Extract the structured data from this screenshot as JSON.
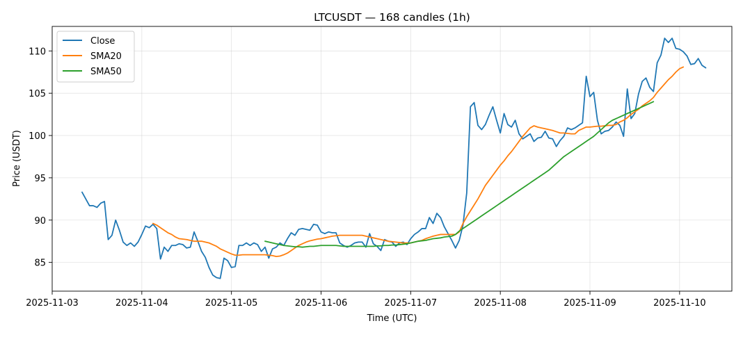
{
  "chart_data": {
    "type": "line",
    "title": "LTCUSDT — 168 candles (1h)",
    "xlabel": "Time (UTC)",
    "ylabel": "Price (USDT)",
    "x_ticks": [
      "2025-11-03",
      "2025-11-04",
      "2025-11-05",
      "2025-11-06",
      "2025-11-07",
      "2025-11-08",
      "2025-11-09",
      "2025-11-10"
    ],
    "y_ticks": [
      "85",
      "90",
      "95",
      "100",
      "105",
      "110"
    ],
    "ylim": [
      81.6,
      112.9
    ],
    "xlim_days": [
      "2025-11-03T00:00",
      "2025-11-10T14:00"
    ],
    "grid": true,
    "legend": "upper-left",
    "x_start": "2025-11-03T08:00",
    "x_step": "1h",
    "series": [
      {
        "name": "Close",
        "color": "#1f77b4",
        "values": [
          93.3,
          92.5,
          91.7,
          91.7,
          91.5,
          92.0,
          92.2,
          87.7,
          88.2,
          90.0,
          88.8,
          87.4,
          87.0,
          87.3,
          86.9,
          87.4,
          88.3,
          89.3,
          89.1,
          89.5,
          89.0,
          85.4,
          86.8,
          86.3,
          87.0,
          87.0,
          87.2,
          87.1,
          86.7,
          86.8,
          88.6,
          87.5,
          86.3,
          85.6,
          84.4,
          83.5,
          83.2,
          83.1,
          85.5,
          85.2,
          84.4,
          84.5,
          87.0,
          87.0,
          87.3,
          87.0,
          87.3,
          87.1,
          86.3,
          86.8,
          85.5,
          86.6,
          86.8,
          87.3,
          87.0,
          87.8,
          88.5,
          88.2,
          88.9,
          89.0,
          88.9,
          88.8,
          89.5,
          89.4,
          88.6,
          88.4,
          88.6,
          88.5,
          88.5,
          87.3,
          87.0,
          86.8,
          87.0,
          87.3,
          87.4,
          87.4,
          86.8,
          88.4,
          87.2,
          86.9,
          86.4,
          87.7,
          87.5,
          87.4,
          86.9,
          87.3,
          87.4,
          87.1,
          87.8,
          88.3,
          88.6,
          89.0,
          89.0,
          90.3,
          89.6,
          90.8,
          90.3,
          89.2,
          88.4,
          87.6,
          86.7,
          87.6,
          89.4,
          93.2,
          103.4,
          103.9,
          101.2,
          100.7,
          101.3,
          102.4,
          103.4,
          101.8,
          100.3,
          102.6,
          101.3,
          101.0,
          101.8,
          100.2,
          99.6,
          99.9,
          100.2,
          99.3,
          99.7,
          99.8,
          100.5,
          99.7,
          99.6,
          98.7,
          99.4,
          99.9,
          100.9,
          100.7,
          100.9,
          101.2,
          101.5,
          107.0,
          104.6,
          105.1,
          101.8,
          100.2,
          100.5,
          100.6,
          101.0,
          101.6,
          101.2,
          99.9,
          105.5,
          102.0,
          102.6,
          104.9,
          106.4,
          106.8,
          105.7,
          105.2,
          108.6,
          109.5,
          111.5,
          111.0,
          111.5,
          110.3,
          110.2,
          109.9,
          109.4,
          108.4,
          108.5,
          109.1,
          108.3,
          108.0
        ]
      },
      {
        "name": "SMA20",
        "color": "#ff7f0e",
        "start_index": 19,
        "values": [
          89.6,
          89.4,
          89.1,
          88.8,
          88.5,
          88.3,
          88.0,
          87.8,
          87.75,
          87.7,
          87.6,
          87.5,
          87.5,
          87.5,
          87.4,
          87.3,
          87.1,
          86.9,
          86.6,
          86.4,
          86.2,
          86.0,
          85.85,
          85.85,
          85.9,
          85.9,
          85.9,
          85.9,
          85.9,
          85.9,
          85.9,
          85.85,
          85.8,
          85.7,
          85.75,
          85.9,
          86.1,
          86.4,
          86.7,
          87.0,
          87.2,
          87.4,
          87.55,
          87.65,
          87.75,
          87.8,
          87.9,
          88.0,
          88.1,
          88.15,
          88.2,
          88.2,
          88.2,
          88.2,
          88.2,
          88.2,
          88.2,
          88.1,
          88.0,
          87.9,
          87.8,
          87.7,
          87.6,
          87.5,
          87.45,
          87.4,
          87.35,
          87.3,
          87.3,
          87.3,
          87.4,
          87.5,
          87.6,
          87.8,
          87.95,
          88.1,
          88.2,
          88.3,
          88.3,
          88.3,
          88.3,
          88.3,
          88.6,
          89.6,
          90.4,
          91.1,
          91.8,
          92.5,
          93.3,
          94.1,
          94.7,
          95.3,
          95.9,
          96.5,
          97.0,
          97.6,
          98.1,
          98.7,
          99.3,
          99.9,
          100.4,
          100.9,
          101.15,
          101.0,
          100.9,
          100.8,
          100.7,
          100.6,
          100.45,
          100.3,
          100.3,
          100.25,
          100.2,
          100.2,
          100.6,
          100.8,
          101.0,
          101.0,
          101.05,
          101.1,
          101.1,
          101.15,
          101.2,
          101.2,
          101.3,
          101.6,
          101.8,
          102.1,
          102.5,
          102.8,
          103.1,
          103.5,
          103.8,
          104.1,
          104.5,
          105.1,
          105.6,
          106.1,
          106.6,
          107.0,
          107.5,
          107.9,
          108.1
        ]
      },
      {
        "name": "SMA50",
        "color": "#2ca02c",
        "start_index": 49,
        "values": [
          87.5,
          87.4,
          87.3,
          87.2,
          87.1,
          87.0,
          86.95,
          86.9,
          86.85,
          86.85,
          86.8,
          86.85,
          86.9,
          86.9,
          86.95,
          87.0,
          87.0,
          87.0,
          87.0,
          87.0,
          86.95,
          86.9,
          86.9,
          86.9,
          86.9,
          86.9,
          86.9,
          86.9,
          86.9,
          86.9,
          86.95,
          86.95,
          87.0,
          87.0,
          87.05,
          87.05,
          87.1,
          87.15,
          87.2,
          87.3,
          87.4,
          87.5,
          87.55,
          87.6,
          87.7,
          87.8,
          87.85,
          87.9,
          88.0,
          88.05,
          88.1,
          88.3,
          88.7,
          89.0,
          89.3,
          89.6,
          89.9,
          90.2,
          90.5,
          90.8,
          91.1,
          91.4,
          91.7,
          92.0,
          92.3,
          92.6,
          92.9,
          93.2,
          93.5,
          93.8,
          94.1,
          94.4,
          94.7,
          95.0,
          95.3,
          95.6,
          95.9,
          96.3,
          96.7,
          97.1,
          97.5,
          97.8,
          98.1,
          98.4,
          98.7,
          99.0,
          99.3,
          99.6,
          99.9,
          100.3,
          100.7,
          101.1,
          101.5,
          101.8,
          102.0,
          102.2,
          102.4,
          102.6,
          102.8,
          103.0,
          103.2,
          103.4,
          103.6,
          103.8,
          104.0
        ]
      }
    ]
  }
}
